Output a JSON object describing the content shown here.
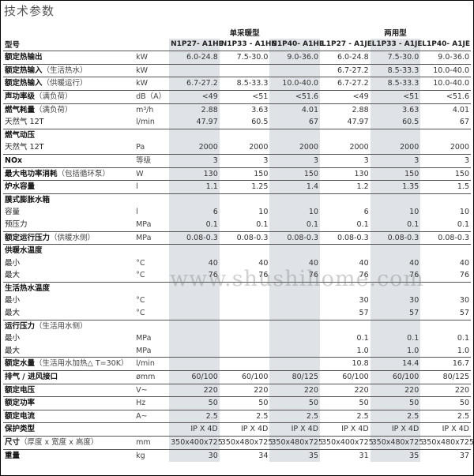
{
  "title": "技术参数",
  "watermark": "www.shushihome.com",
  "colors": {
    "shade": "#dfe3e7",
    "rule": "#555555"
  },
  "groups": [
    {
      "label": "单采暖型"
    },
    {
      "label": "两用型"
    }
  ],
  "model_label": "型号",
  "models": [
    "N1P27- A1HE",
    "N1P33 - A1HE",
    "N1P40- A1HE",
    "L1P27 - A1JE",
    "L1P33 - A1JE",
    "L1P40- A1JE"
  ],
  "rows": [
    {
      "label": "额定热输出",
      "note": "",
      "unit": "kW",
      "values": [
        "6.0-24.8",
        "7.5-30.0",
        "9.0-36.0",
        "6.0-24.8",
        "7.5-30.0",
        "9.0-36.0"
      ],
      "bold": true,
      "group_start": true
    },
    {
      "label": "额定热输入",
      "note": "（生活热水）",
      "unit": "kW",
      "values": [
        "",
        "",
        "",
        "6.7-27.2",
        "8.5-33.3",
        "10.0-40.0"
      ],
      "bold": true,
      "group_start": true
    },
    {
      "label": "额定热输入",
      "note": "（供暖运行）",
      "unit": "kW",
      "values": [
        "6.7-27.2",
        "8.5-33.3",
        "10.0-40.0",
        "6.7-27.2",
        "8.5-33.3",
        "10.0-40.0"
      ],
      "bold": true,
      "group_start": true
    },
    {
      "label": "声功率级",
      "note": "（满负荷）",
      "unit": "dB（A）",
      "values": [
        "<49",
        "<51",
        "<51.6",
        "<49",
        "<51",
        "<51.6"
      ],
      "bold": true,
      "group_start": true
    },
    {
      "label": "燃气耗量",
      "note": "（满负荷）",
      "unit": "m³/h",
      "values": [
        "2.88",
        "3.63",
        "4.01",
        "2.88",
        "3.63",
        "4.01"
      ],
      "bold": true,
      "group_start": true
    },
    {
      "label": "天然气 12T",
      "note": "",
      "unit": "l/min",
      "values": [
        "47.97",
        "60.5",
        "67",
        "47.97",
        "60.5",
        "67"
      ],
      "bold": false,
      "group_start": false
    },
    {
      "label": "燃气动压",
      "note": "",
      "unit": "",
      "values": [
        "",
        "",
        "",
        "",
        "",
        ""
      ],
      "bold": true,
      "group_start": true
    },
    {
      "label": "天然气 12T",
      "note": "",
      "unit": "Pa",
      "values": [
        "2000",
        "2000",
        "2000",
        "2000",
        "2000",
        "2000"
      ],
      "bold": false,
      "group_start": false
    },
    {
      "label": "NOx",
      "note": "",
      "unit": "等级",
      "values": [
        "3",
        "3",
        "3",
        "3",
        "3",
        "3"
      ],
      "bold": true,
      "group_start": true
    },
    {
      "label": "最大电功率消耗",
      "note": "（包括循环泵）",
      "unit": "W",
      "values": [
        "130",
        "150",
        "150",
        "130",
        "150",
        "150"
      ],
      "bold": true,
      "group_start": true
    },
    {
      "label": "炉水容量",
      "note": "",
      "unit": "l",
      "values": [
        "1.1",
        "1.25",
        "1.4",
        "1.2",
        "1.35",
        "1.5"
      ],
      "bold": true,
      "group_start": true
    },
    {
      "label": "膜式膨胀水箱",
      "note": "",
      "unit": "",
      "values": [
        "",
        "",
        "",
        "",
        "",
        ""
      ],
      "bold": true,
      "group_start": true
    },
    {
      "label": "容量",
      "note": "",
      "unit": "l",
      "values": [
        "6",
        "10",
        "10",
        "6",
        "10",
        "10"
      ],
      "bold": false,
      "group_start": false
    },
    {
      "label": "预压力",
      "note": "",
      "unit": "MPa",
      "values": [
        "0.1",
        "0.1",
        "0.1",
        "0.1",
        "0.1",
        "0.1"
      ],
      "bold": false,
      "group_start": false
    },
    {
      "label": "额定运行压力",
      "note": "（供暖水侧）",
      "unit": "MPa",
      "values": [
        "0.08-0.3",
        "0.08-0.3",
        "0.08-0.3",
        "0.08-0.3",
        "0.08-0.3",
        "0.08-0.3"
      ],
      "bold": true,
      "group_start": true
    },
    {
      "label": "供暖水温度",
      "note": "",
      "unit": "",
      "values": [
        "",
        "",
        "",
        "",
        "",
        ""
      ],
      "bold": true,
      "group_start": true
    },
    {
      "label": "最小",
      "note": "",
      "unit": "°C",
      "values": [
        "40",
        "40",
        "40",
        "40",
        "40",
        "40"
      ],
      "bold": false,
      "group_start": false
    },
    {
      "label": "最大",
      "note": "",
      "unit": "°C",
      "values": [
        "76",
        "76",
        "76",
        "76",
        "76",
        "76"
      ],
      "bold": false,
      "group_start": false
    },
    {
      "label": "生活热水温度",
      "note": "",
      "unit": "",
      "values": [
        "",
        "",
        "",
        "",
        "",
        ""
      ],
      "bold": true,
      "group_start": true
    },
    {
      "label": "最小",
      "note": "",
      "unit": "°C",
      "values": [
        "",
        "",
        "",
        "30",
        "30",
        "30"
      ],
      "bold": false,
      "group_start": false
    },
    {
      "label": "最大",
      "note": "",
      "unit": "°C",
      "values": [
        "",
        "",
        "",
        "57",
        "57",
        "57"
      ],
      "bold": false,
      "group_start": false
    },
    {
      "label": "运行压力",
      "note": "（生活用水侧）",
      "unit": "",
      "values": [
        "",
        "",
        "",
        "",
        "",
        ""
      ],
      "bold": true,
      "group_start": true
    },
    {
      "label": "最小",
      "note": "",
      "unit": "MPa",
      "values": [
        "",
        "",
        "",
        "0.1",
        "0.1",
        "0.1"
      ],
      "bold": false,
      "group_start": false
    },
    {
      "label": "最大",
      "note": "",
      "unit": "MPa",
      "values": [
        "",
        "",
        "",
        "1.0",
        "1.0",
        "1.0"
      ],
      "bold": false,
      "group_start": false
    },
    {
      "label": "额定水量",
      "note": "（生活用水加热△ T=30K）",
      "unit": "l/min",
      "values": [
        "",
        "",
        "",
        "10.8",
        "14.4",
        "16.7"
      ],
      "bold": true,
      "group_start": true
    },
    {
      "label": "排气 / 进风接口",
      "note": "",
      "unit": "ømm",
      "values": [
        "60/100",
        "60/100",
        "80/125",
        "60/100",
        "60/100",
        "80/125"
      ],
      "bold": true,
      "group_start": true
    },
    {
      "label": "额定电压",
      "note": "",
      "unit": "V~",
      "values": [
        "220",
        "220",
        "220",
        "220",
        "220",
        "220"
      ],
      "bold": true,
      "group_start": true
    },
    {
      "label": "额定功率",
      "note": "",
      "unit": "Hz",
      "values": [
        "50",
        "50",
        "50",
        "50",
        "50",
        "50"
      ],
      "bold": true,
      "group_start": true
    },
    {
      "label": "额定电流",
      "note": "",
      "unit": "A~",
      "values": [
        "2.5",
        "2.5",
        "2.5",
        "2.5",
        "2.5",
        "2.5"
      ],
      "bold": true,
      "group_start": true
    },
    {
      "label": "保护类型",
      "note": "",
      "unit": "",
      "values": [
        "IP X 4D",
        "IP X 4D",
        "IP X 4D",
        "IP X 4D",
        "IP X 4D",
        "IP X 4D"
      ],
      "bold": true,
      "group_start": true
    },
    {
      "label": "尺寸",
      "note": "（厚度 x 宽度 x 高度）",
      "unit": "mm",
      "values": [
        "350x400x725",
        "350x480x725",
        "350x480x725",
        "350x400x725",
        "350x480x725",
        "350x480x725"
      ],
      "bold": true,
      "group_start": true
    },
    {
      "label": "重量",
      "note": "",
      "unit": "kg",
      "values": [
        "30",
        "34",
        "35",
        "31",
        "35",
        "37"
      ],
      "bold": true,
      "group_start": true
    }
  ]
}
